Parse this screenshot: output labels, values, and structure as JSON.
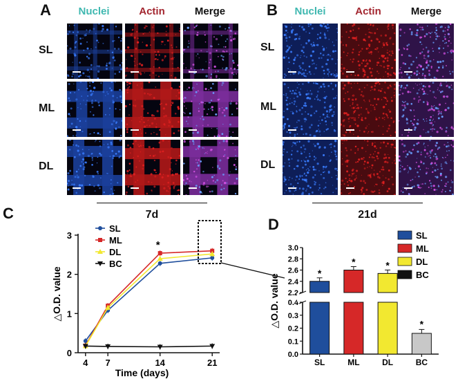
{
  "panels": {
    "A": {
      "letter": "A",
      "columns": [
        "Nuclei",
        "Actin",
        "Merge"
      ],
      "rows": [
        "SL",
        "ML",
        "DL"
      ],
      "timepoint": "7d"
    },
    "B": {
      "letter": "B",
      "columns": [
        "Nuclei",
        "Actin",
        "Merge"
      ],
      "rows": [
        "SL",
        "ML",
        "DL"
      ],
      "timepoint": "21d"
    }
  },
  "colors": {
    "nuclei": "#3fb8b0",
    "actin": "#a3262f",
    "merge": "#111111",
    "SL": "#1f4e9c",
    "ML": "#d62828",
    "DL": "#f2e830",
    "BC": "#111111",
    "BC_bar": "#c8c8c8"
  },
  "chart_data": [
    {
      "panel": "C",
      "type": "line",
      "x": [
        4,
        7,
        14,
        21
      ],
      "xlabel": "Time (days)",
      "ylabel": "△O.D. value",
      "xticks": [
        "4",
        "7",
        "14",
        "21"
      ],
      "yticks": [
        "0",
        "1",
        "2",
        "3"
      ],
      "ylim": [
        0,
        3
      ],
      "legend_position": "top-left",
      "series": [
        {
          "name": "SL",
          "values": [
            0.3,
            1.08,
            2.28,
            2.42
          ],
          "marker": "circle"
        },
        {
          "name": "ML",
          "values": [
            0.18,
            1.2,
            2.54,
            2.6
          ],
          "marker": "square"
        },
        {
          "name": "DL",
          "values": [
            0.17,
            1.15,
            2.4,
            2.52
          ],
          "marker": "triangle-up"
        },
        {
          "name": "BC",
          "values": [
            0.17,
            0.16,
            0.15,
            0.17
          ],
          "marker": "triangle-down"
        }
      ],
      "annotations": [
        {
          "x": 14,
          "text": "*"
        }
      ]
    },
    {
      "panel": "D",
      "type": "bar",
      "categories": [
        "SL",
        "ML",
        "DL",
        "BC"
      ],
      "values": [
        2.4,
        2.6,
        2.54,
        0.16
      ],
      "errors": [
        0.04,
        0.03,
        0.03,
        0.03
      ],
      "significance": [
        "*",
        "*",
        "*",
        "*"
      ],
      "ylabel": "△O.D. value",
      "broken_axis": {
        "lower": [
          0,
          0.4
        ],
        "upper": [
          2.2,
          3.0
        ]
      },
      "yticks_lower": [
        "0.0",
        "0.1",
        "0.2",
        "0.3",
        "0.4"
      ],
      "yticks_upper": [
        "2.2",
        "2.4",
        "2.6",
        "2.8",
        "3.0"
      ],
      "legend_position": "top-right",
      "legend": [
        "SL",
        "ML",
        "DL",
        "BC"
      ]
    }
  ],
  "panel_letters": {
    "C": "C",
    "D": "D"
  }
}
